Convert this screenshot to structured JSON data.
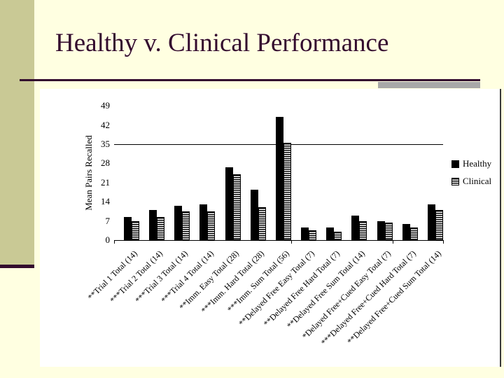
{
  "slide": {
    "title": "Healthy v. Clinical Performance",
    "background_color": "#FFFFE1",
    "sidebar_color": "#C9C995",
    "title_color": "#330A2E",
    "accent_box_color": "#A8A8A8"
  },
  "chart_data": {
    "type": "bar",
    "title": "",
    "xlabel": "",
    "ylabel": "Mean Pairs Recalled",
    "ylim": [
      0,
      49
    ],
    "yticks": [
      0,
      7,
      14,
      21,
      28,
      35,
      42,
      49
    ],
    "gridlines": [
      35
    ],
    "grid": "single-line-at-35",
    "legend_position": "right",
    "legend_labels": [
      "Healthy",
      "Clinical"
    ],
    "categories": [
      "**Trial 1 Total (14)",
      "***Trial 2 Total (14)",
      "***Trial 3 Total (14)",
      "***Trial 4 Total (14)",
      "**Imm. Easy Total (28)",
      "***Imm. Hard Total (28)",
      "***Imm. Sum Total (56)",
      "**Delayed Free Easy Total (7)",
      "**Delayed Free Hard Total (7)",
      "**Delayed Free Sum Total (14)",
      "*Delayed Free+Cued Easy Total (7)",
      "***Delayed Free+Cued Hard Total (7)",
      "**Delayed Free+Cued Sum Total (14)"
    ],
    "series": [
      {
        "name": "Healthy",
        "color": "#000000",
        "pattern": "solid",
        "values": [
          8.5,
          11,
          12.5,
          13,
          26.5,
          18.5,
          45,
          4.5,
          4.5,
          9,
          7,
          6,
          13
        ]
      },
      {
        "name": "Clinical",
        "color": "#000000",
        "pattern": "horizontal-stripes",
        "values": [
          7,
          8.5,
          10.5,
          10.5,
          24,
          12,
          35.5,
          3.5,
          3,
          7,
          6.5,
          4.5,
          11
        ]
      }
    ]
  }
}
